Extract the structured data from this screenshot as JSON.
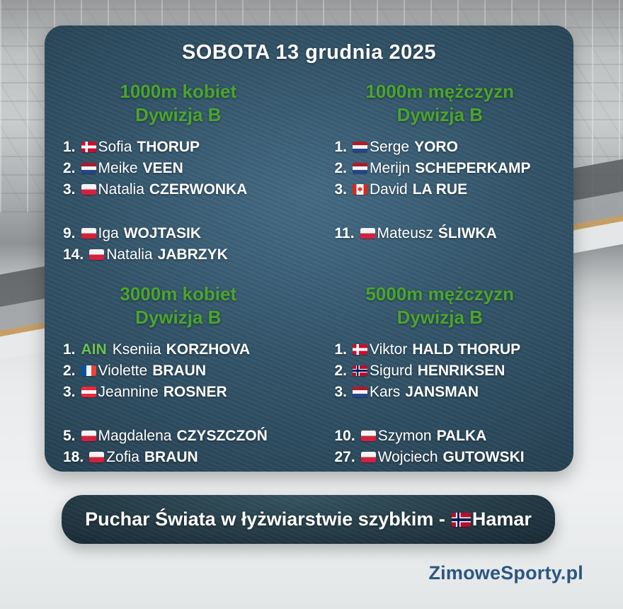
{
  "title": "SOBOTA 13 grudnia 2025",
  "ain_label": "AIN",
  "sections": [
    {
      "heading_line1": "1000m kobiet",
      "heading_line2": "Dywizja B",
      "top3": [
        {
          "rank": "1.",
          "flag": "denmark",
          "first": "Sofia",
          "last": "THORUP"
        },
        {
          "rank": "2.",
          "flag": "netherlands",
          "first": "Meike",
          "last": "VEEN"
        },
        {
          "rank": "3.",
          "flag": "poland",
          "first": "Natalia",
          "last": "CZERWONKA"
        }
      ],
      "others": [
        {
          "rank": "9.",
          "flag": "poland",
          "first": "Iga",
          "last": "WOJTASIK"
        },
        {
          "rank": "14.",
          "flag": "poland",
          "first": "Natalia",
          "last": "JABRZYK"
        }
      ]
    },
    {
      "heading_line1": "1000m mężczyzn",
      "heading_line2": "Dywizja B",
      "top3": [
        {
          "rank": "1.",
          "flag": "netherlands",
          "first": "Serge",
          "last": "YORO"
        },
        {
          "rank": "2.",
          "flag": "netherlands",
          "first": "Merijn",
          "last": "SCHEPERKAMP"
        },
        {
          "rank": "3.",
          "flag": "canada",
          "first": "David",
          "last": "LA RUE"
        }
      ],
      "others": [
        {
          "rank": "11.",
          "flag": "poland",
          "first": "Mateusz",
          "last": "ŚLIWKA"
        }
      ]
    },
    {
      "heading_line1": "3000m kobiet",
      "heading_line2": "Dywizja B",
      "top3": [
        {
          "rank": "1.",
          "flag": "ain",
          "first": "Kseniia",
          "last": "KORZHOVA"
        },
        {
          "rank": "2.",
          "flag": "france",
          "first": "Violette",
          "last": "BRAUN"
        },
        {
          "rank": "3.",
          "flag": "austria",
          "first": "Jeannine",
          "last": "ROSNER"
        }
      ],
      "others": [
        {
          "rank": "5.",
          "flag": "poland",
          "first": "Magdalena",
          "last": "CZYSZCZOŃ"
        },
        {
          "rank": "18.",
          "flag": "poland",
          "first": "Zofia",
          "last": "BRAUN"
        }
      ]
    },
    {
      "heading_line1": "5000m mężczyzn",
      "heading_line2": "Dywizja B",
      "top3": [
        {
          "rank": "1.",
          "flag": "denmark",
          "first": "Viktor",
          "last": "HALD THORUP"
        },
        {
          "rank": "2.",
          "flag": "norway",
          "first": "Sigurd",
          "last": "HENRIKSEN"
        },
        {
          "rank": "3.",
          "flag": "netherlands",
          "first": "Kars",
          "last": "JANSMAN"
        }
      ],
      "others": [
        {
          "rank": "10.",
          "flag": "poland",
          "first": "Szymon",
          "last": "PALKA"
        },
        {
          "rank": "27.",
          "flag": "poland",
          "first": "Wojciech",
          "last": "GUTOWSKI"
        }
      ]
    }
  ],
  "footer": {
    "prefix": "Puchar Świata w łyżwiarstwie szybkim -",
    "flag": "norway",
    "location": "Hamar"
  },
  "branding": "ZimoweSporty.pl",
  "colors": {
    "green": "#4ba52e",
    "ain-green": "#6cc253",
    "brand": "#2b5681"
  }
}
